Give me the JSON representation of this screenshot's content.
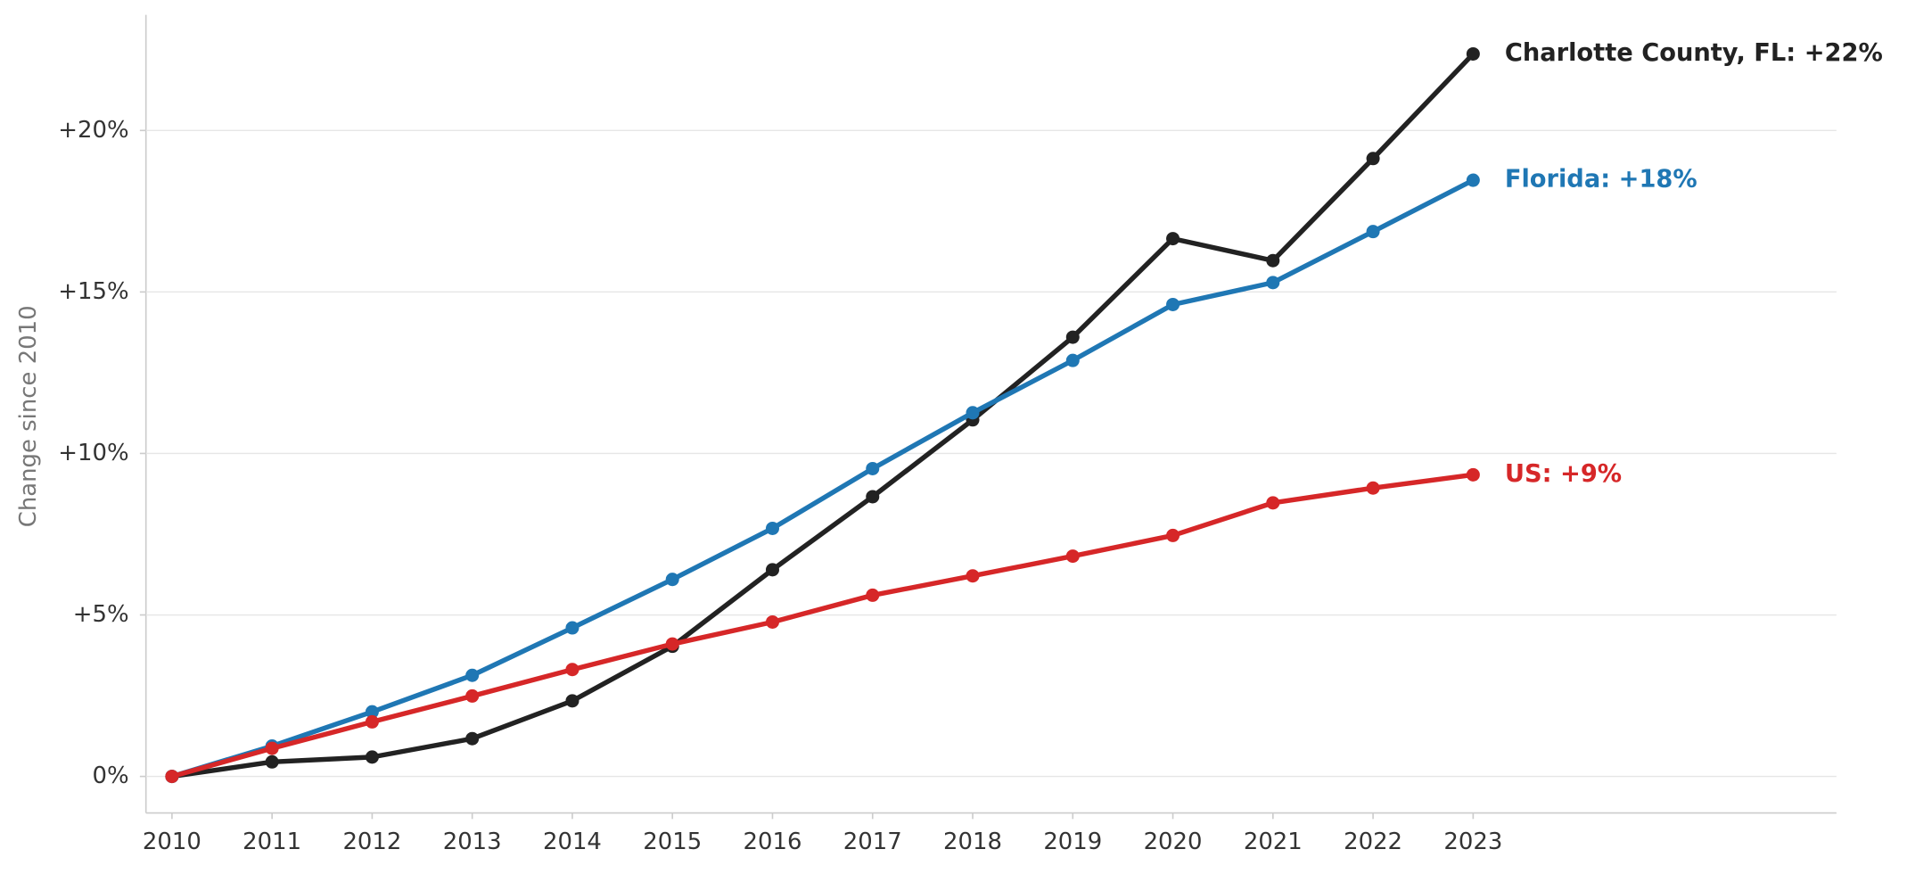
{
  "chart_data": {
    "type": "line",
    "y_label": "Change since 2010",
    "x": [
      2010,
      2011,
      2012,
      2013,
      2014,
      2015,
      2016,
      2017,
      2018,
      2019,
      2020,
      2021,
      2022,
      2023
    ],
    "series": [
      {
        "name": "Charlotte County, FL",
        "label": "Charlotte County, FL: +22%",
        "color": "#222222",
        "values": [
          0,
          0.45,
          0.6,
          1.17,
          2.34,
          4.03,
          6.4,
          8.66,
          11.04,
          13.6,
          16.65,
          15.97,
          19.13,
          22.37
        ]
      },
      {
        "name": "Florida",
        "label": "Florida: +18%",
        "color": "#1f77b4",
        "values": [
          0,
          0.94,
          2.0,
          3.13,
          4.6,
          6.1,
          7.68,
          9.53,
          11.26,
          12.88,
          14.61,
          15.29,
          16.87,
          18.46
        ]
      },
      {
        "name": "US",
        "label": "US: +9%",
        "color": "#d62728",
        "values": [
          0,
          0.87,
          1.69,
          2.49,
          3.31,
          4.1,
          4.78,
          5.61,
          6.21,
          6.82,
          7.46,
          8.47,
          8.93,
          9.34
        ]
      }
    ],
    "xlim": [
      2009.74,
      2026.63
    ],
    "ylim": [
      -1.13,
      23.58
    ],
    "xticks": [
      2010,
      2011,
      2012,
      2013,
      2014,
      2015,
      2016,
      2017,
      2018,
      2019,
      2020,
      2021,
      2022,
      2023
    ],
    "yticks": [
      {
        "value": 0,
        "label": "0%"
      },
      {
        "value": 5,
        "label": "+5%"
      },
      {
        "value": 10,
        "label": "+10%"
      },
      {
        "value": 15,
        "label": "+15%"
      },
      {
        "value": 20,
        "label": "+20%"
      }
    ],
    "grid": true
  }
}
